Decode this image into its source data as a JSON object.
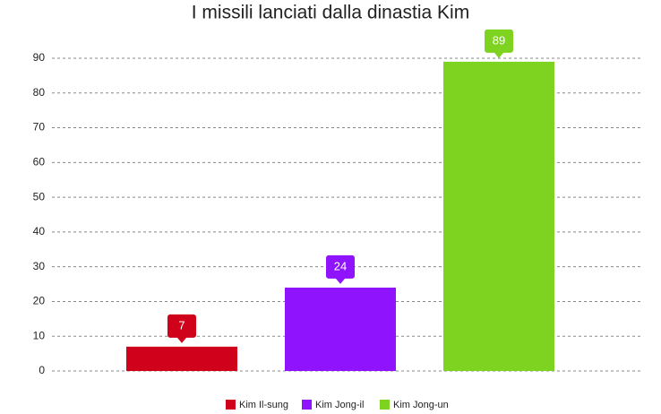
{
  "chart_data": {
    "type": "bar",
    "title": "I missili lanciati dalla dinastia Kim",
    "categories": [
      "Kim Il-sung",
      "Kim Jong-il",
      "Kim Jong-un"
    ],
    "values": [
      7,
      24,
      89
    ],
    "colors": [
      "#d0021b",
      "#9013fe",
      "#7ed321"
    ],
    "ylim": [
      0,
      90
    ],
    "yticks": [
      0,
      10,
      20,
      30,
      40,
      50,
      60,
      70,
      80,
      90
    ],
    "grid": true
  }
}
